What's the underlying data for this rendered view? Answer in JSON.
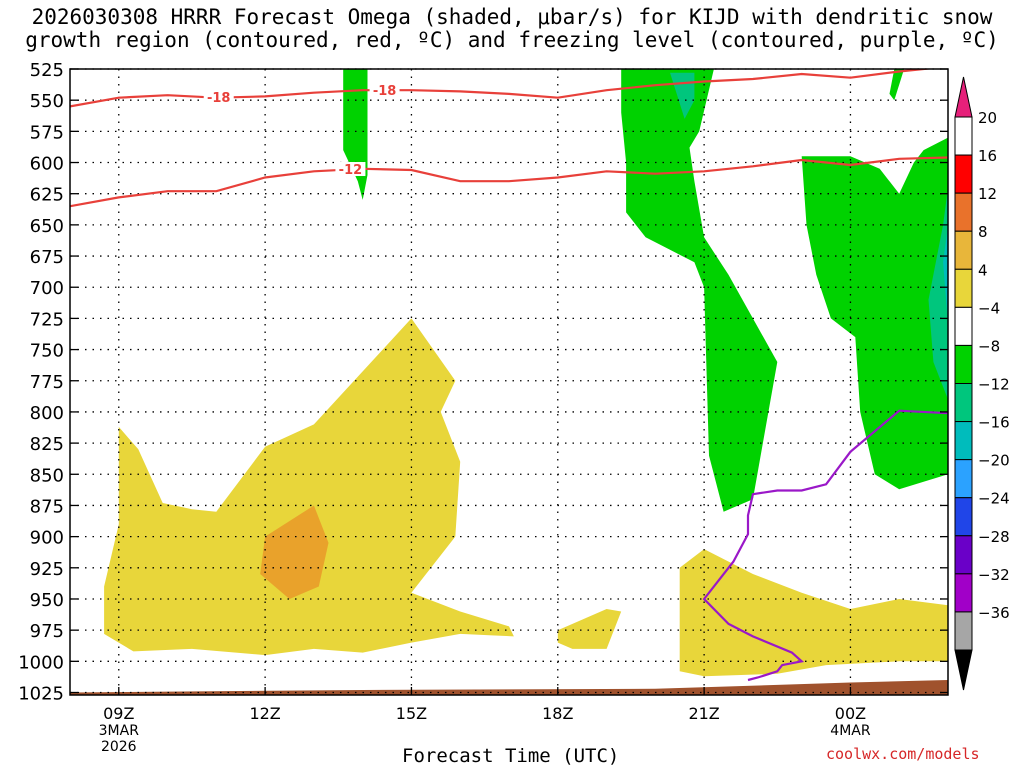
{
  "chart_data": {
    "type": "heatmap",
    "title_line1": "2026030308 HRRR Forecast Omega (shaded, μbar/s) for KIJD with dendritic snow",
    "title_line2": "growth region (contoured, red, ºC) and freezing level (contoured, purple, ºC)",
    "xlabel": "Forecast Time (UTC)",
    "credit": "coolwx.com/models",
    "y_ticks": [
      525,
      550,
      575,
      600,
      625,
      650,
      675,
      700,
      725,
      750,
      775,
      800,
      825,
      850,
      875,
      900,
      925,
      950,
      975,
      1000,
      1025
    ],
    "x_ticks": [
      {
        "h": 9,
        "label": "09Z",
        "sub1": "3MAR",
        "sub2": "2026"
      },
      {
        "h": 12,
        "label": "12Z"
      },
      {
        "h": 15,
        "label": "15Z"
      },
      {
        "h": 18,
        "label": "18Z"
      },
      {
        "h": 21,
        "label": "21Z"
      },
      {
        "h": 24,
        "label": "00Z",
        "sub1": "4MAR"
      }
    ],
    "xlim": [
      8.0,
      26.0
    ],
    "ylim": [
      525,
      1027
    ],
    "colorbar": {
      "labels": [
        "20",
        "16",
        "12",
        "8",
        "4",
        "−4",
        "−8",
        "−12",
        "−16",
        "−20",
        "−24",
        "−28",
        "−32",
        "−36"
      ],
      "colors": [
        "#ffffff",
        "#ff0000",
        "#e9722b",
        "#e8b63a",
        "#e8d63a",
        "#ffffff",
        "#00d200",
        "#00c67d",
        "#00bcbc",
        "#2ba2ff",
        "#2045e8",
        "#6a00c8",
        "#a100c8",
        "#a6a6a6"
      ],
      "top_arrow_color": "#e6207a",
      "bottom_arrow_color": "#000000"
    },
    "contour_labels": [
      "-18",
      "-18",
      "-12"
    ],
    "shaded_regions": [
      {
        "color": "#e8d63a",
        "points": [
          [
            9,
            812
          ],
          [
            9.4,
            830
          ],
          [
            9.9,
            873
          ],
          [
            10.5,
            878
          ],
          [
            11.0,
            880
          ],
          [
            12.0,
            828
          ],
          [
            13.0,
            810
          ],
          [
            15.0,
            725
          ],
          [
            15.9,
            775
          ],
          [
            15.6,
            800
          ],
          [
            16.0,
            840
          ],
          [
            15.9,
            900
          ],
          [
            15.0,
            945
          ],
          [
            16.0,
            960
          ],
          [
            17.0,
            972
          ],
          [
            17.1,
            980
          ],
          [
            16.0,
            978
          ],
          [
            15.0,
            985
          ],
          [
            14.0,
            993
          ],
          [
            13.0,
            990
          ],
          [
            12.0,
            995
          ],
          [
            10.5,
            990
          ],
          [
            9.3,
            992
          ],
          [
            8.7,
            978
          ],
          [
            8.7,
            940
          ],
          [
            9,
            890
          ]
        ]
      },
      {
        "color": "#e9a22b",
        "points": [
          [
            12.0,
            900
          ],
          [
            13.0,
            875
          ],
          [
            13.3,
            905
          ],
          [
            13.1,
            940
          ],
          [
            12.5,
            950
          ],
          [
            11.9,
            930
          ]
        ]
      },
      {
        "color": "#e8d63a",
        "points": [
          [
            18.0,
            975
          ],
          [
            19.0,
            958
          ],
          [
            19.3,
            960
          ],
          [
            19.0,
            990
          ],
          [
            18.3,
            990
          ],
          [
            18.0,
            985
          ]
        ]
      },
      {
        "color": "#e8d63a",
        "points": [
          [
            20.5,
            925
          ],
          [
            21.0,
            910
          ],
          [
            22.0,
            930
          ],
          [
            23.0,
            945
          ],
          [
            24.0,
            958
          ],
          [
            25.0,
            950
          ],
          [
            26.0,
            955
          ],
          [
            26.0,
            1000
          ],
          [
            25.0,
            1000
          ],
          [
            23.5,
            1003
          ],
          [
            22.5,
            1010
          ],
          [
            21.0,
            1012
          ],
          [
            20.5,
            1008
          ],
          [
            20.5,
            970
          ]
        ]
      },
      {
        "color": "#00d200",
        "points": [
          [
            13.6,
            525
          ],
          [
            14.1,
            525
          ],
          [
            14.1,
            610
          ],
          [
            14.0,
            630
          ],
          [
            13.9,
            615
          ],
          [
            13.6,
            590
          ]
        ]
      },
      {
        "color": "#00d200",
        "points": [
          [
            19.3,
            525
          ],
          [
            20.3,
            525
          ],
          [
            21.2,
            525
          ],
          [
            20.9,
            575
          ],
          [
            20.7,
            588
          ],
          [
            20.8,
            615
          ],
          [
            21.0,
            660
          ],
          [
            21.5,
            690
          ],
          [
            22.5,
            760
          ],
          [
            22.0,
            870
          ],
          [
            21.4,
            880
          ],
          [
            21.1,
            835
          ],
          [
            21.0,
            700
          ],
          [
            20.8,
            680
          ],
          [
            20.3,
            670
          ],
          [
            19.8,
            660
          ],
          [
            19.4,
            640
          ],
          [
            19.4,
            600
          ],
          [
            19.3,
            560
          ]
        ]
      },
      {
        "color": "#00d200",
        "points": [
          [
            24.9,
            525
          ],
          [
            25.1,
            525
          ],
          [
            24.9,
            550
          ],
          [
            24.8,
            545
          ]
        ]
      },
      {
        "color": "#00d200",
        "points": [
          [
            23.0,
            595
          ],
          [
            24.0,
            595
          ],
          [
            24.6,
            605
          ],
          [
            25.0,
            625
          ],
          [
            25.3,
            600
          ],
          [
            25.5,
            590
          ],
          [
            26.0,
            580
          ],
          [
            26.0,
            850
          ],
          [
            25.0,
            862
          ],
          [
            24.5,
            850
          ],
          [
            24.2,
            800
          ],
          [
            24.1,
            740
          ],
          [
            23.6,
            725
          ],
          [
            23.3,
            690
          ],
          [
            23.1,
            650
          ]
        ]
      },
      {
        "color": "#00c67d",
        "points": [
          [
            20.3,
            528
          ],
          [
            20.8,
            528
          ],
          [
            20.8,
            550
          ],
          [
            20.6,
            565
          ],
          [
            20.4,
            540
          ]
        ]
      },
      {
        "color": "#00c67d",
        "points": [
          [
            25.6,
            710
          ],
          [
            25.9,
            650
          ],
          [
            26.0,
            620
          ],
          [
            26.0,
            790
          ],
          [
            25.7,
            760
          ]
        ]
      },
      {
        "color": "#00bcbc",
        "points": [
          [
            25.9,
            680
          ],
          [
            26.0,
            650
          ],
          [
            26.0,
            730
          ]
        ]
      }
    ],
    "terrain": {
      "color": "#a0522d",
      "points": [
        [
          8.0,
          1025
        ],
        [
          14.0,
          1023
        ],
        [
          20.0,
          1022
        ],
        [
          24.0,
          1017
        ],
        [
          26.0,
          1015
        ],
        [
          26.0,
          1027
        ],
        [
          8.0,
          1027
        ]
      ]
    },
    "red_contours": [
      {
        "name": "-18",
        "points": [
          [
            8.0,
            555
          ],
          [
            9.0,
            548
          ],
          [
            10.0,
            546
          ],
          [
            11.0,
            548
          ],
          [
            12.0,
            547
          ],
          [
            13.0,
            544
          ],
          [
            14.0,
            542
          ],
          [
            15.0,
            542
          ],
          [
            16.0,
            543
          ],
          [
            17.0,
            545
          ],
          [
            18.0,
            548
          ],
          [
            19.0,
            542
          ],
          [
            20.0,
            538
          ],
          [
            21.0,
            535
          ],
          [
            22.0,
            533
          ],
          [
            23.0,
            529
          ],
          [
            24.0,
            532
          ],
          [
            25.0,
            527
          ],
          [
            26.0,
            523
          ]
        ]
      },
      {
        "name": "-12",
        "points": [
          [
            8.0,
            635
          ],
          [
            9.0,
            628
          ],
          [
            10.0,
            623
          ],
          [
            11.0,
            623
          ],
          [
            12.0,
            612
          ],
          [
            13.0,
            607
          ],
          [
            14.0,
            605
          ],
          [
            15.0,
            606
          ],
          [
            16.0,
            615
          ],
          [
            17.0,
            615
          ],
          [
            18.0,
            612
          ],
          [
            19.0,
            607
          ],
          [
            20.0,
            609
          ],
          [
            21.0,
            607
          ],
          [
            22.0,
            603
          ],
          [
            23.0,
            598
          ],
          [
            24.0,
            602
          ],
          [
            25.0,
            597
          ],
          [
            26.0,
            596
          ]
        ]
      }
    ],
    "purple_contour": {
      "name": "freezing level",
      "points": [
        [
          26.0,
          801
        ],
        [
          25.0,
          799
        ],
        [
          24.0,
          832
        ],
        [
          23.5,
          858
        ],
        [
          23.0,
          863
        ],
        [
          22.5,
          863
        ],
        [
          22.0,
          866
        ],
        [
          21.9,
          883
        ],
        [
          21.9,
          898
        ],
        [
          21.6,
          920
        ],
        [
          21.0,
          950
        ],
        [
          21.5,
          970
        ],
        [
          22.0,
          980
        ],
        [
          22.8,
          993
        ],
        [
          23.0,
          1000
        ],
        [
          22.6,
          1003
        ],
        [
          22.5,
          1008
        ],
        [
          22.1,
          1013
        ],
        [
          21.9,
          1015
        ]
      ]
    }
  }
}
